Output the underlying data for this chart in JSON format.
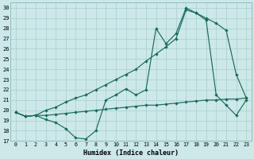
{
  "xlabel": "Humidex (Indice chaleur)",
  "bg_color": "#cce8e8",
  "line_color": "#1a6b5a",
  "grid_color": "#aacece",
  "xlim": [
    -0.5,
    23.5
  ],
  "ylim": [
    17,
    30.5
  ],
  "xticks": [
    0,
    1,
    2,
    3,
    4,
    5,
    6,
    7,
    8,
    9,
    10,
    11,
    12,
    13,
    14,
    15,
    16,
    17,
    18,
    19,
    20,
    21,
    22,
    23
  ],
  "yticks": [
    17,
    18,
    19,
    20,
    21,
    22,
    23,
    24,
    25,
    26,
    27,
    28,
    29,
    30
  ],
  "line1_x": [
    0,
    1,
    2,
    3,
    4,
    5,
    6,
    7,
    8,
    9,
    10,
    11,
    12,
    13,
    14,
    15,
    16,
    17,
    18,
    19,
    20,
    21,
    22,
    23
  ],
  "line1_y": [
    19.8,
    19.4,
    19.5,
    19.5,
    19.6,
    19.7,
    19.8,
    19.9,
    20.0,
    20.1,
    20.2,
    20.3,
    20.4,
    20.5,
    20.5,
    20.6,
    20.7,
    20.8,
    20.9,
    21.0,
    21.0,
    21.1,
    21.1,
    21.2
  ],
  "line2_x": [
    0,
    1,
    2,
    3,
    4,
    5,
    6,
    7,
    8,
    9,
    10,
    11,
    12,
    13,
    14,
    15,
    16,
    17,
    18,
    19,
    20,
    21,
    22,
    23
  ],
  "line2_y": [
    19.8,
    19.4,
    19.5,
    19.1,
    18.8,
    18.2,
    17.3,
    17.2,
    18.0,
    21.0,
    21.5,
    22.1,
    21.5,
    22.0,
    28.0,
    26.5,
    27.5,
    30.0,
    29.5,
    28.8,
    21.5,
    20.5,
    19.5,
    21.0
  ],
  "line3_x": [
    0,
    1,
    2,
    3,
    4,
    5,
    6,
    7,
    8,
    9,
    10,
    11,
    12,
    13,
    14,
    15,
    16,
    17,
    18,
    19,
    20,
    21,
    22,
    23
  ],
  "line3_y": [
    19.8,
    19.4,
    19.5,
    20.0,
    20.3,
    20.8,
    21.2,
    21.5,
    22.0,
    22.5,
    23.0,
    23.5,
    24.0,
    24.8,
    25.5,
    26.2,
    27.0,
    29.8,
    29.5,
    29.0,
    28.5,
    27.8,
    23.5,
    21.2
  ]
}
